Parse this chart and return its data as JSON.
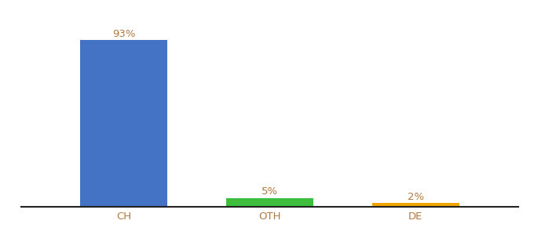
{
  "categories": [
    "CH",
    "OTH",
    "DE"
  ],
  "values": [
    93,
    5,
    2
  ],
  "bar_colors": [
    "#4472c4",
    "#3dbf3d",
    "#f0a500"
  ],
  "label_texts": [
    "93%",
    "5%",
    "2%"
  ],
  "ylim": [
    0,
    105
  ],
  "background_color": "#ffffff",
  "bar_width": 0.6,
  "label_fontsize": 9.5,
  "tick_fontsize": 9.5,
  "label_color": "#b07840",
  "tick_color": "#b07840",
  "spine_color": "#222222"
}
